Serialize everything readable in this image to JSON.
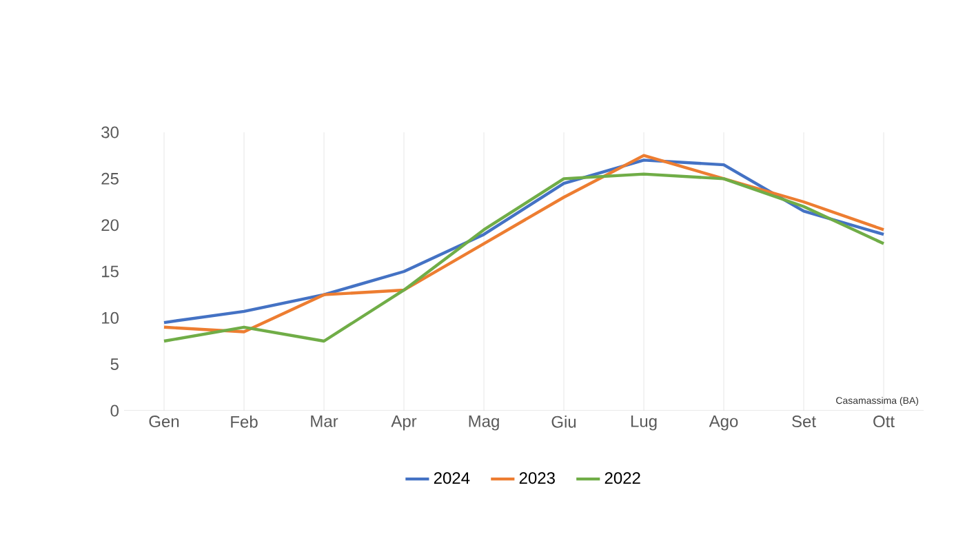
{
  "chart_data": {
    "type": "line",
    "categories": [
      "Gen",
      "Feb",
      "Mar",
      "Apr",
      "Mag",
      "Giu",
      "Lug",
      "Ago",
      "Set",
      "Ott"
    ],
    "series": [
      {
        "name": "2024",
        "color": "#4472c4",
        "values": [
          9.5,
          10.7,
          12.5,
          15,
          19,
          24.5,
          27,
          26.5,
          21.5,
          19
        ]
      },
      {
        "name": "2023",
        "color": "#ed7d31",
        "values": [
          9,
          8.5,
          12.5,
          13,
          18,
          23,
          27.5,
          25,
          22.5,
          19.5
        ]
      },
      {
        "name": "2022",
        "color": "#70ad47",
        "values": [
          7.5,
          9,
          7.5,
          13,
          19.5,
          25,
          25.5,
          25,
          22,
          18
        ]
      }
    ],
    "ylim": [
      0,
      30
    ],
    "yticks": [
      0,
      5,
      10,
      15,
      20,
      25,
      30
    ],
    "grid": "x",
    "legend": "bottom",
    "marker": "none",
    "line_style": "solid",
    "annotations": [
      "Casamassima (BA)"
    ]
  }
}
